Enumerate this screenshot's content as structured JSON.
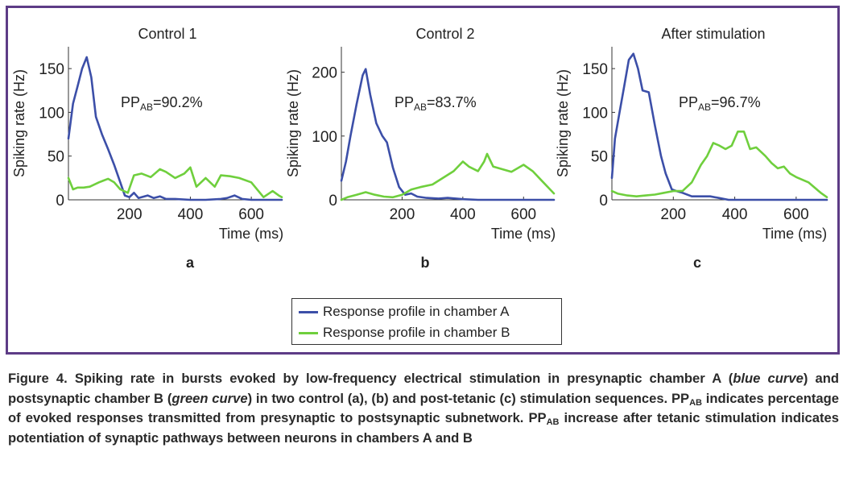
{
  "figure": {
    "caption": {
      "figure_label": "Figure 4.",
      "part1": " Spiking rate in bursts evoked by low-frequency electrical stimulation in presynaptic chamber A (",
      "blue_italic": "blue curve",
      "part2": ") and postsynaptic chamber B (",
      "green_italic": "green curve",
      "part3": ") in two control (a), (b) and post-tetanic (c) stimulation sequences. PP",
      "sub1": "AB",
      "part4": " indicates percentage of evoked responses transmitted from presynaptic to postsynaptic subnetwork. PP",
      "sub2": "AB",
      "part5": " increase after tetanic stimulation indicates potentiation of synaptic pathways between neurons in chambers A and B"
    },
    "legend": {
      "items": [
        {
          "label": "Response profile in chamber A",
          "color": "#3c4fa8"
        },
        {
          "label": "Response profile in chamber B",
          "color": "#6fcf3d"
        }
      ]
    }
  },
  "chart_data": [
    {
      "type": "line",
      "title": "Control 1",
      "panel_label": "a",
      "xlabel": "Time (ms)",
      "ylabel": "Spiking rate (Hz)",
      "xlim": [
        0,
        700
      ],
      "ylim": [
        0,
        175
      ],
      "xticks": [
        200,
        400,
        600
      ],
      "yticks": [
        0,
        50,
        100,
        150
      ],
      "annotation": {
        "prefix": "PP",
        "sub": "AB",
        "value": "=90.2%"
      },
      "series": [
        {
          "name": "Response profile in chamber A",
          "color": "#3c4fa8",
          "x": [
            0,
            15,
            30,
            45,
            60,
            75,
            90,
            110,
            130,
            150,
            170,
            185,
            200,
            215,
            230,
            260,
            280,
            300,
            320,
            350,
            400,
            450,
            500,
            520,
            545,
            570,
            600,
            650,
            700
          ],
          "y": [
            70,
            110,
            130,
            150,
            163,
            140,
            95,
            75,
            58,
            40,
            20,
            5,
            3,
            8,
            2,
            5,
            2,
            4,
            1,
            1,
            0,
            0,
            1,
            2,
            5,
            1,
            0,
            0,
            0
          ]
        },
        {
          "name": "Response profile in chamber B",
          "color": "#6fcf3d",
          "x": [
            0,
            15,
            30,
            50,
            70,
            100,
            130,
            150,
            170,
            195,
            215,
            240,
            270,
            300,
            320,
            350,
            380,
            400,
            420,
            450,
            480,
            500,
            530,
            560,
            600,
            640,
            670,
            690,
            700
          ],
          "y": [
            25,
            12,
            14,
            14,
            15,
            20,
            24,
            20,
            12,
            8,
            28,
            30,
            26,
            35,
            32,
            25,
            30,
            37,
            15,
            25,
            15,
            28,
            27,
            25,
            20,
            3,
            10,
            5,
            3
          ]
        }
      ]
    },
    {
      "type": "line",
      "title": "Control 2",
      "panel_label": "b",
      "xlabel": "Time (ms)",
      "ylabel": "Spiking rate (Hz)",
      "xlim": [
        0,
        700
      ],
      "ylim": [
        0,
        240
      ],
      "xticks": [
        200,
        400,
        600
      ],
      "yticks": [
        0,
        100,
        200
      ],
      "annotation": {
        "prefix": "PP",
        "sub": "AB",
        "value": "=83.7%"
      },
      "series": [
        {
          "name": "Response profile in chamber A",
          "color": "#3c4fa8",
          "x": [
            0,
            15,
            30,
            50,
            70,
            80,
            95,
            115,
            135,
            150,
            170,
            190,
            210,
            230,
            250,
            280,
            320,
            350,
            400,
            450,
            500,
            600,
            700
          ],
          "y": [
            30,
            60,
            100,
            150,
            195,
            205,
            165,
            120,
            100,
            90,
            50,
            20,
            8,
            10,
            5,
            3,
            2,
            3,
            1,
            0,
            0,
            0,
            0
          ]
        },
        {
          "name": "Response profile in chamber B",
          "color": "#6fcf3d",
          "x": [
            0,
            20,
            50,
            80,
            110,
            140,
            170,
            200,
            230,
            260,
            300,
            340,
            370,
            400,
            420,
            450,
            470,
            480,
            500,
            530,
            560,
            600,
            630,
            660,
            690,
            700
          ],
          "y": [
            0,
            4,
            8,
            12,
            8,
            5,
            4,
            8,
            16,
            20,
            24,
            36,
            45,
            60,
            52,
            45,
            60,
            72,
            52,
            48,
            44,
            55,
            45,
            30,
            15,
            10
          ]
        }
      ]
    },
    {
      "type": "line",
      "title": "After stimulation",
      "panel_label": "c",
      "xlabel": "Time (ms)",
      "ylabel": "Spiking rate (Hz)",
      "xlim": [
        0,
        700
      ],
      "ylim": [
        0,
        175
      ],
      "xticks": [
        200,
        400,
        600
      ],
      "yticks": [
        0,
        50,
        100,
        150
      ],
      "annotation": {
        "prefix": "PP",
        "sub": "AB",
        "value": "=96.7%"
      },
      "series": [
        {
          "name": "Response profile in chamber A",
          "color": "#3c4fa8",
          "x": [
            0,
            10,
            25,
            40,
            55,
            70,
            85,
            100,
            120,
            140,
            160,
            175,
            195,
            210,
            230,
            260,
            290,
            320,
            350,
            380,
            420,
            500,
            700
          ],
          "y": [
            25,
            70,
            100,
            130,
            160,
            167,
            150,
            125,
            123,
            85,
            50,
            30,
            12,
            10,
            8,
            4,
            4,
            4,
            2,
            0,
            0,
            0,
            0
          ]
        },
        {
          "name": "Response profile in chamber B",
          "color": "#6fcf3d",
          "x": [
            0,
            20,
            50,
            80,
            110,
            140,
            170,
            200,
            230,
            260,
            290,
            310,
            330,
            350,
            370,
            390,
            410,
            430,
            450,
            470,
            500,
            520,
            540,
            560,
            580,
            600,
            640,
            680,
            700
          ],
          "y": [
            10,
            7,
            5,
            4,
            5,
            6,
            8,
            10,
            10,
            20,
            40,
            50,
            65,
            62,
            58,
            62,
            78,
            78,
            58,
            60,
            50,
            42,
            36,
            38,
            30,
            26,
            20,
            8,
            3
          ]
        }
      ]
    }
  ]
}
